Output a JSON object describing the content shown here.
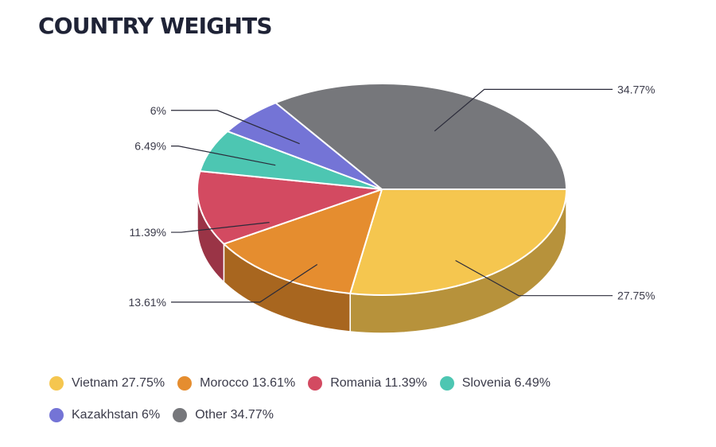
{
  "title": "COUNTRY WEIGHTS",
  "chart_data": {
    "type": "pie",
    "variant": "3d",
    "slices": [
      {
        "name": "Vietnam",
        "value": 27.75,
        "label": "27.75%",
        "legend": "Vietnam 27.75%",
        "color": "#F5C64F",
        "side_color": "#B7923B"
      },
      {
        "name": "Morocco",
        "value": 13.61,
        "label": "13.61%",
        "legend": "Morocco 13.61%",
        "color": "#E58D2F",
        "side_color": "#A8661F"
      },
      {
        "name": "Romania",
        "value": 11.39,
        "label": "11.39%",
        "legend": "Romania 11.39%",
        "color": "#D34A61",
        "side_color": "#9A3446"
      },
      {
        "name": "Slovenia",
        "value": 6.49,
        "label": "6.49%",
        "legend": "Slovenia 6.49%",
        "color": "#4DC6B2",
        "side_color": "#379082"
      },
      {
        "name": "Kazakhstan",
        "value": 6,
        "label": "6%",
        "legend": "Kazakhstan 6%",
        "color": "#7474D6",
        "side_color": "#52529C"
      },
      {
        "name": "Other",
        "value": 34.77,
        "label": "34.77%",
        "legend": "Other 34.77%",
        "color": "#76777B",
        "side_color": "#55565A"
      }
    ],
    "legend_position": "bottom"
  }
}
